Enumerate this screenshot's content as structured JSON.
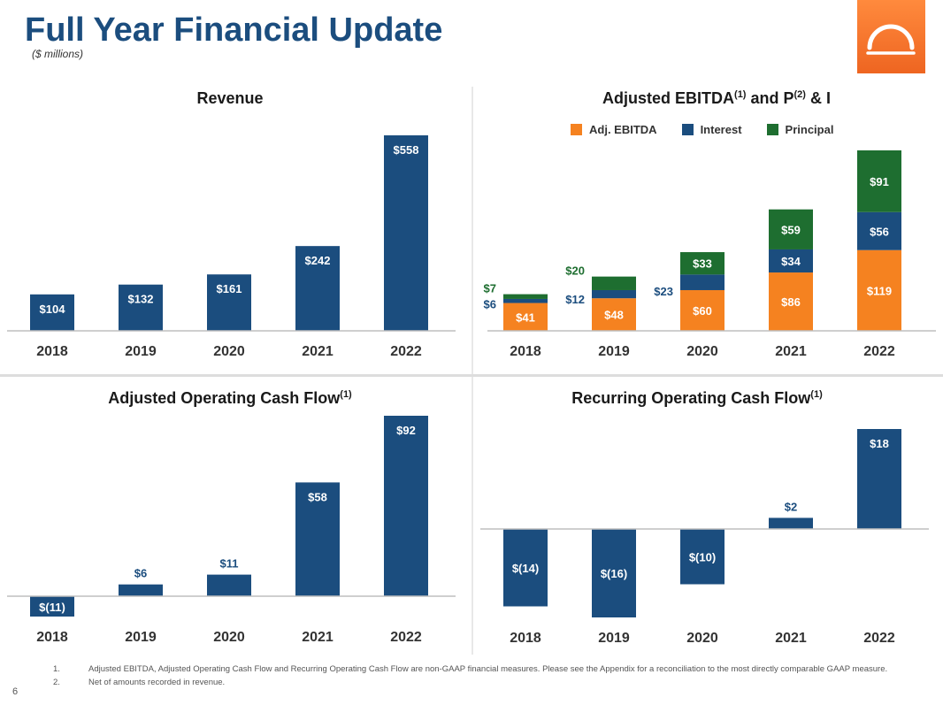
{
  "page": {
    "title": "Full Year Financial Update",
    "subtitle": "($ millions)",
    "page_number": "6",
    "colors": {
      "navy": "#1b4d7e",
      "orange": "#f58220",
      "green": "#1e6e30"
    }
  },
  "footnotes": [
    {
      "num": "1.",
      "text": "Adjusted EBITDA, Adjusted Operating Cash Flow and Recurring Operating Cash Flow are non-GAAP financial measures. Please see the Appendix for a reconciliation to the most directly comparable GAAP measure."
    },
    {
      "num": "2.",
      "text": "Net of amounts recorded in revenue."
    }
  ],
  "chart_data": [
    {
      "id": "revenue",
      "type": "bar",
      "title": "Revenue",
      "title_sup": "",
      "categories": [
        "2018",
        "2019",
        "2020",
        "2021",
        "2022"
      ],
      "values": [
        104,
        132,
        161,
        242,
        558
      ],
      "labels": [
        "$104",
        "$132",
        "$161",
        "$242",
        "$558"
      ],
      "ylim": [
        0,
        558
      ]
    },
    {
      "id": "ebitda",
      "type": "bar",
      "stacked": true,
      "title": "Adjusted EBITDA",
      "title_parts": [
        "Adjusted EBITDA",
        "(1)",
        " and P",
        "(2)",
        " & I"
      ],
      "legend": "top",
      "categories": [
        "2018",
        "2019",
        "2020",
        "2021",
        "2022"
      ],
      "series": [
        {
          "name": "Adj. EBITDA",
          "color": "#f58220",
          "values": [
            41,
            48,
            60,
            86,
            119
          ],
          "labels": [
            "$41",
            "$48",
            "$60",
            "$86",
            "$119"
          ]
        },
        {
          "name": "Interest",
          "color": "#1b4d7e",
          "values": [
            6,
            12,
            23,
            34,
            56
          ],
          "labels": [
            "$6",
            "$12",
            "$23",
            "$34",
            "$56"
          ]
        },
        {
          "name": "Principal",
          "color": "#1e6e30",
          "values": [
            7,
            20,
            33,
            59,
            91
          ],
          "labels": [
            "$7",
            "$20",
            "$33",
            "$59",
            "$91"
          ]
        }
      ],
      "ylim": [
        0,
        266
      ]
    },
    {
      "id": "aocf",
      "type": "bar",
      "title": "Adjusted Operating Cash Flow",
      "title_sup": "(1)",
      "categories": [
        "2018",
        "2019",
        "2020",
        "2021",
        "2022"
      ],
      "values": [
        -11,
        6,
        11,
        58,
        92
      ],
      "labels": [
        "$(11)",
        "$6",
        "$11",
        "$58",
        "$92"
      ],
      "ylim": [
        -11,
        92
      ]
    },
    {
      "id": "rocf",
      "type": "bar",
      "title": "Recurring Operating Cash Flow",
      "title_sup": "(1)",
      "categories": [
        "2018",
        "2019",
        "2020",
        "2021",
        "2022"
      ],
      "values": [
        -14,
        -16,
        -10,
        2,
        18
      ],
      "labels": [
        "$(14)",
        "$(16)",
        "$(10)",
        "$2",
        "$18"
      ],
      "ylim": [
        -16,
        18
      ]
    }
  ]
}
